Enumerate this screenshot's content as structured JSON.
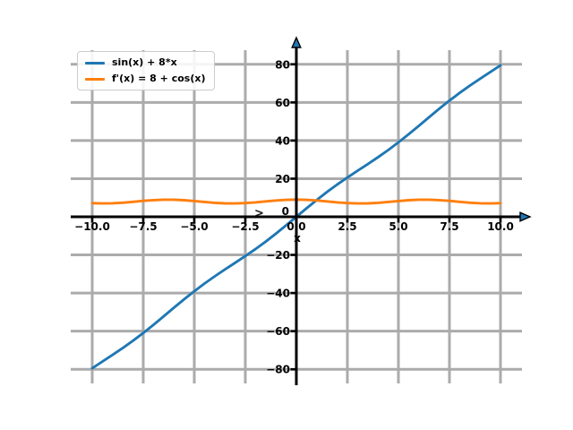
{
  "figure": {
    "background": "#ffffff",
    "xlabel": "x",
    "stray_marker_glyph": ">"
  },
  "legend": {
    "position": "upper left",
    "entries": [
      {
        "label": "sin(x) + 8*x",
        "color": "#1f77b4"
      },
      {
        "label": "f'(x) = 8 + cos(x)",
        "color": "#ff7f0e"
      }
    ]
  },
  "chart_data": {
    "type": "line",
    "title": "",
    "xlabel": "x",
    "ylabel": "",
    "xlim": [
      -11.05,
      11.05
    ],
    "ylim": [
      -87.4,
      87.4
    ],
    "grid": true,
    "legend_position": "upper left",
    "x_ticks": [
      -10,
      -7.5,
      -5,
      -2.5,
      0,
      2.5,
      5,
      7.5,
      10
    ],
    "x_tick_labels": [
      "−10.0",
      "−7.5",
      "−5.0",
      "−2.5",
      "0.0",
      "2.5",
      "5.0",
      "7.5",
      "10.0"
    ],
    "y_ticks": [
      -80,
      -60,
      -40,
      -20,
      0,
      20,
      40,
      60,
      80
    ],
    "y_tick_labels": [
      "−80",
      "−60",
      "−40",
      "−20",
      "0",
      "20",
      "40",
      "60",
      "80"
    ],
    "x": [
      -10,
      -9.5,
      -9,
      -8.5,
      -8,
      -7.5,
      -7,
      -6.5,
      -6,
      -5.5,
      -5,
      -4.5,
      -4,
      -3.5,
      -3,
      -2.5,
      -2,
      -1.5,
      -1,
      -0.5,
      0,
      0.5,
      1,
      1.5,
      2,
      2.5,
      3,
      3.5,
      4,
      4.5,
      5,
      5.5,
      6,
      6.5,
      7,
      7.5,
      8,
      8.5,
      9,
      9.5,
      10
    ],
    "series": [
      {
        "name": "sin(x) + 8*x",
        "color": "#1f77b4",
        "values": [
          -79.46,
          -75.92,
          -72.41,
          -68.8,
          -64.99,
          -60.94,
          -56.66,
          -52.22,
          -47.72,
          -43.29,
          -39.04,
          -35.02,
          -31.24,
          -27.65,
          -24.14,
          -20.6,
          -16.91,
          -13,
          -8.84,
          -4.48,
          0,
          4.48,
          8.84,
          13,
          16.91,
          20.6,
          24.14,
          27.65,
          31.24,
          35.02,
          39.04,
          43.29,
          47.72,
          52.22,
          56.66,
          60.94,
          64.99,
          68.8,
          72.41,
          75.92,
          79.46
        ]
      },
      {
        "name": "f'(x) = 8 + cos(x)",
        "color": "#ff7f0e",
        "values": [
          7.16,
          7,
          7.09,
          7.4,
          7.85,
          8.35,
          8.75,
          8.98,
          8.96,
          8.71,
          8.28,
          7.79,
          7.35,
          7.06,
          7.01,
          7.2,
          7.58,
          8.07,
          8.54,
          8.88,
          9,
          8.88,
          8.54,
          8.07,
          7.58,
          7.2,
          7.01,
          7.06,
          7.35,
          7.79,
          8.28,
          8.71,
          8.96,
          8.98,
          8.75,
          8.35,
          7.85,
          7.4,
          7.09,
          7,
          7.16
        ]
      }
    ],
    "style": {
      "grid_color": "#ababab",
      "axis_color": "#000000",
      "arrow_fill": "#1f77b4",
      "arrow_edge": "#000000",
      "text_color": "#000000",
      "stray_marker_color": "#1a1a1a"
    }
  }
}
